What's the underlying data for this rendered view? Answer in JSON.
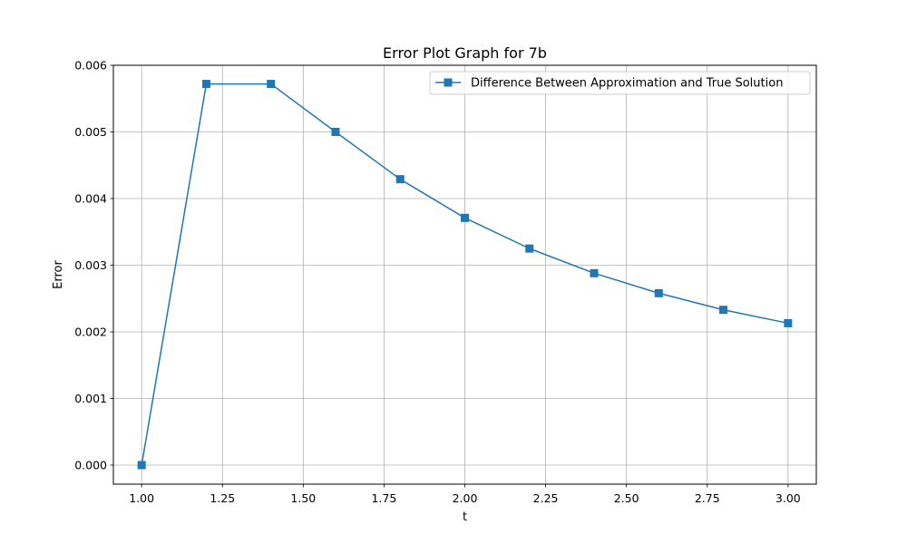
{
  "chart_data": {
    "type": "line",
    "title": "Error Plot Graph for 7b",
    "xlabel": "t",
    "ylabel": "Error",
    "xlim": [
      0.9125,
      3.0875
    ],
    "ylim": [
      -0.000286,
      0.006
    ],
    "grid": true,
    "legend_position": "top-right",
    "x_ticks": [
      "1.00",
      "1.25",
      "1.50",
      "1.75",
      "2.00",
      "2.25",
      "2.50",
      "2.75",
      "3.00"
    ],
    "y_ticks": [
      "0.000",
      "0.001",
      "0.002",
      "0.003",
      "0.004",
      "0.005",
      "0.006"
    ],
    "series": [
      {
        "name": "Difference Between Approximation and True Solution",
        "color": "#1f77b4",
        "marker": "square",
        "x": [
          1.0,
          1.2,
          1.4,
          1.6,
          1.8,
          2.0,
          2.2,
          2.4,
          2.6,
          2.8,
          3.0
        ],
        "y": [
          0.0,
          0.00572,
          0.00572,
          0.005,
          0.00429,
          0.00371,
          0.00325,
          0.00288,
          0.00258,
          0.00233,
          0.00213
        ]
      }
    ]
  }
}
